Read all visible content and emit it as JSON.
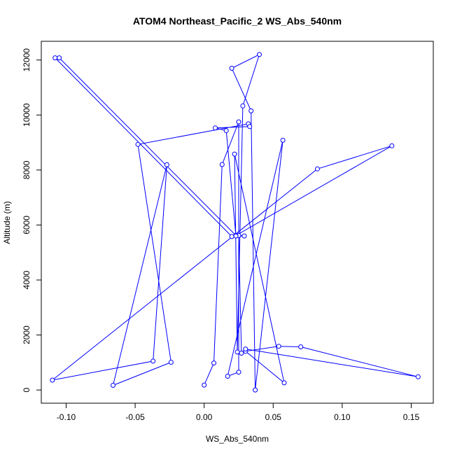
{
  "chart_data": {
    "type": "line",
    "title": "ATOM4 Northeast_Pacific_2 WS_Abs_540nm",
    "xlabel": "WS_Abs_540nm",
    "ylabel": "Altitude (m)",
    "xlim": [
      -0.118,
      0.166
    ],
    "ylim": [
      -480,
      12680
    ],
    "x_ticks": [
      -0.1,
      -0.05,
      0.0,
      0.05,
      0.1,
      0.15
    ],
    "x_tick_labels": [
      "-0.10",
      "-0.05",
      "0.00",
      "0.05",
      "0.10",
      "0.15"
    ],
    "y_ticks": [
      0,
      2000,
      4000,
      6000,
      8000,
      10000,
      12000
    ],
    "y_tick_labels": [
      "0",
      "2000",
      "4000",
      "6000",
      "8000",
      "10000",
      "12000"
    ],
    "grid": false,
    "line_color": "#0000ff",
    "marker": "open-circle",
    "series": [
      {
        "x": [
          0.0,
          0.007,
          0.013,
          0.025,
          0.025,
          0.017,
          0.057,
          0.037,
          0.034,
          0.02,
          0.04,
          0.028,
          0.024,
          0.022,
          0.058,
          0.03,
          0.054,
          0.07,
          0.155,
          0.03,
          0.027,
          0.025,
          0.029,
          0.02,
          -0.108,
          -0.105,
          0.023,
          0.136,
          0.082,
          -0.11,
          -0.037,
          -0.027,
          -0.066,
          -0.024,
          -0.048,
          0.032,
          0.033,
          0.008,
          0.016,
          0.023
        ],
        "y": [
          180,
          980,
          8200,
          9750,
          650,
          500,
          9080,
          0,
          10150,
          11700,
          12200,
          10330,
          1380,
          8580,
          260,
          1410,
          1590,
          1570,
          480,
          1490,
          1340,
          5620,
          5600,
          5580,
          12080,
          12080,
          5620,
          8880,
          8040,
          360,
          1050,
          8190,
          170,
          1010,
          8930,
          9680,
          9580,
          9530,
          9430,
          5600
        ]
      }
    ]
  }
}
